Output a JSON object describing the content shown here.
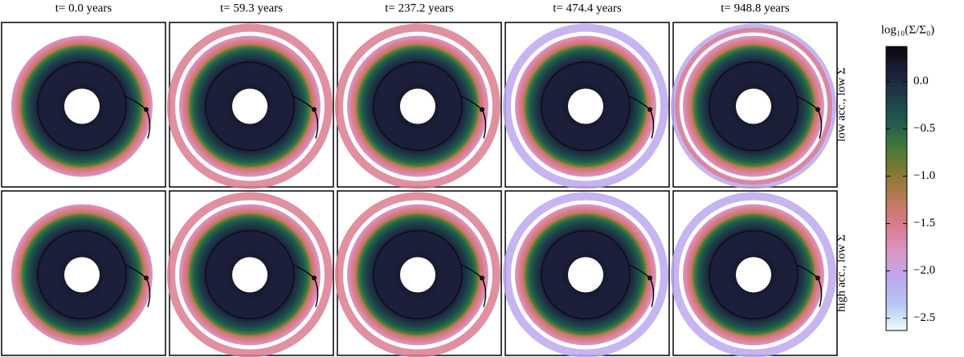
{
  "chart_data": {
    "type": "image-grid",
    "columns": [
      "t=  0.0 years",
      "t=  59.3 years",
      "t= 237.2 years",
      "t= 474.4 years",
      "t= 948.8 years"
    ],
    "rows": [
      "low acc., low Σ",
      "high acc., low Σ"
    ],
    "colorbar": {
      "label": "log₁₀(Σ/Σ₀)",
      "lim": [
        -2.63,
        0.37
      ],
      "ticks": [
        {
          "value": 0,
          "label": "0.0"
        },
        {
          "value": -0.5,
          "label": "−0.5"
        },
        {
          "value": -1,
          "label": "−1.0"
        },
        {
          "value": -1.5,
          "label": "−1.5"
        },
        {
          "value": -2,
          "label": "−2.0"
        },
        {
          "value": -2.5,
          "label": "−2.5"
        }
      ],
      "colormap": [
        "#08070f",
        "#1c1f3a",
        "#1d3f48",
        "#1f5e4e",
        "#4a7a38",
        "#8a7a30",
        "#c07a5c",
        "#dc7c90",
        "#d898c8",
        "#bca8ee",
        "#b4c8f2",
        "#eefcf8"
      ]
    }
  }
}
